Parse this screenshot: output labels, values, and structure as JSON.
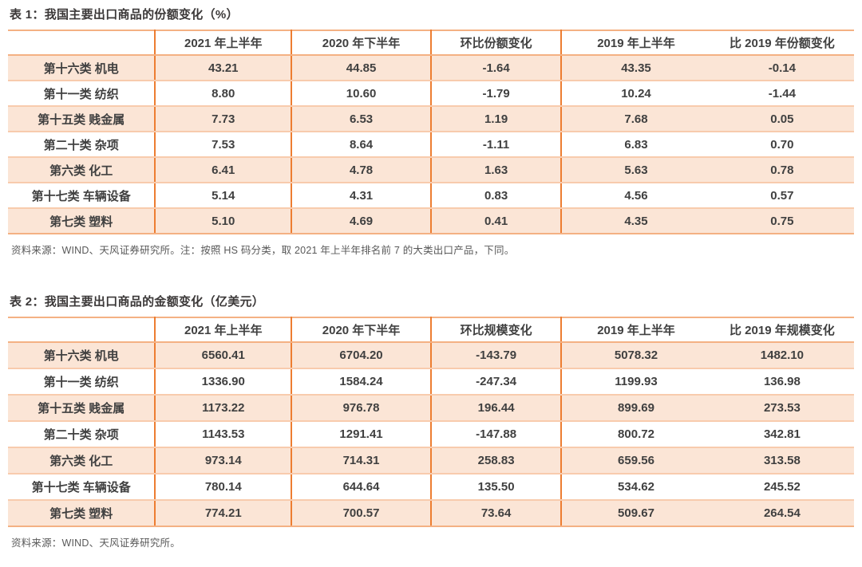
{
  "colors": {
    "accent_orange": "#ED7D31",
    "row_shade": "#FBE5D6",
    "line_light": "#F8CBAD",
    "line_medium": "#F4B183",
    "negative_red": "#FF0000",
    "text_dark": "#404040",
    "note_gray": "#595959"
  },
  "tables": [
    {
      "title": "表 1：我国主要出口商品的份额变化（%）",
      "columns": [
        "",
        "2021 年上半年",
        "2020 年下半年",
        "环比份额变化",
        "2019 年上半年",
        "比 2019 年份额变化"
      ],
      "rows": [
        {
          "label": "第十六类 机电",
          "values": [
            "43.21",
            "44.85",
            "-1.64",
            "43.35",
            "-0.14"
          ]
        },
        {
          "label": "第十一类 纺织",
          "values": [
            "8.80",
            "10.60",
            "-1.79",
            "10.24",
            "-1.44"
          ]
        },
        {
          "label": "第十五类 贱金属",
          "values": [
            "7.73",
            "6.53",
            "1.19",
            "7.68",
            "0.05"
          ]
        },
        {
          "label": "第二十类 杂项",
          "values": [
            "7.53",
            "8.64",
            "-1.11",
            "6.83",
            "0.70"
          ]
        },
        {
          "label": "第六类 化工",
          "values": [
            "6.41",
            "4.78",
            "1.63",
            "5.63",
            "0.78"
          ]
        },
        {
          "label": "第十七类 车辆设备",
          "values": [
            "5.14",
            "4.31",
            "0.83",
            "4.56",
            "0.57"
          ]
        },
        {
          "label": "第七类 塑料",
          "values": [
            "5.10",
            "4.69",
            "0.41",
            "4.35",
            "0.75"
          ]
        }
      ],
      "note": "资料来源：WIND、天风证券研究所。注：按照 HS 码分类，取 2021 年上半年排名前 7 的大类出口产品，下同。"
    },
    {
      "title": "表 2：我国主要出口商品的金额变化（亿美元）",
      "columns": [
        "",
        "2021 年上半年",
        "2020 年下半年",
        "环比规模变化",
        "2019 年上半年",
        "比 2019 年规模变化"
      ],
      "rows": [
        {
          "label": "第十六类 机电",
          "values": [
            "6560.41",
            "6704.20",
            "-143.79",
            "5078.32",
            "1482.10"
          ]
        },
        {
          "label": "第十一类 纺织",
          "values": [
            "1336.90",
            "1584.24",
            "-247.34",
            "1199.93",
            "136.98"
          ]
        },
        {
          "label": "第十五类 贱金属",
          "values": [
            "1173.22",
            "976.78",
            "196.44",
            "899.69",
            "273.53"
          ]
        },
        {
          "label": "第二十类 杂项",
          "values": [
            "1143.53",
            "1291.41",
            "-147.88",
            "800.72",
            "342.81"
          ]
        },
        {
          "label": "第六类 化工",
          "values": [
            "973.14",
            "714.31",
            "258.83",
            "659.56",
            "313.58"
          ]
        },
        {
          "label": "第十七类 车辆设备",
          "values": [
            "780.14",
            "644.64",
            "135.50",
            "534.62",
            "245.52"
          ]
        },
        {
          "label": "第七类 塑料",
          "values": [
            "774.21",
            "700.57",
            "73.64",
            "509.67",
            "264.54"
          ]
        }
      ],
      "note": "资料来源：WIND、天风证券研究所。"
    }
  ]
}
